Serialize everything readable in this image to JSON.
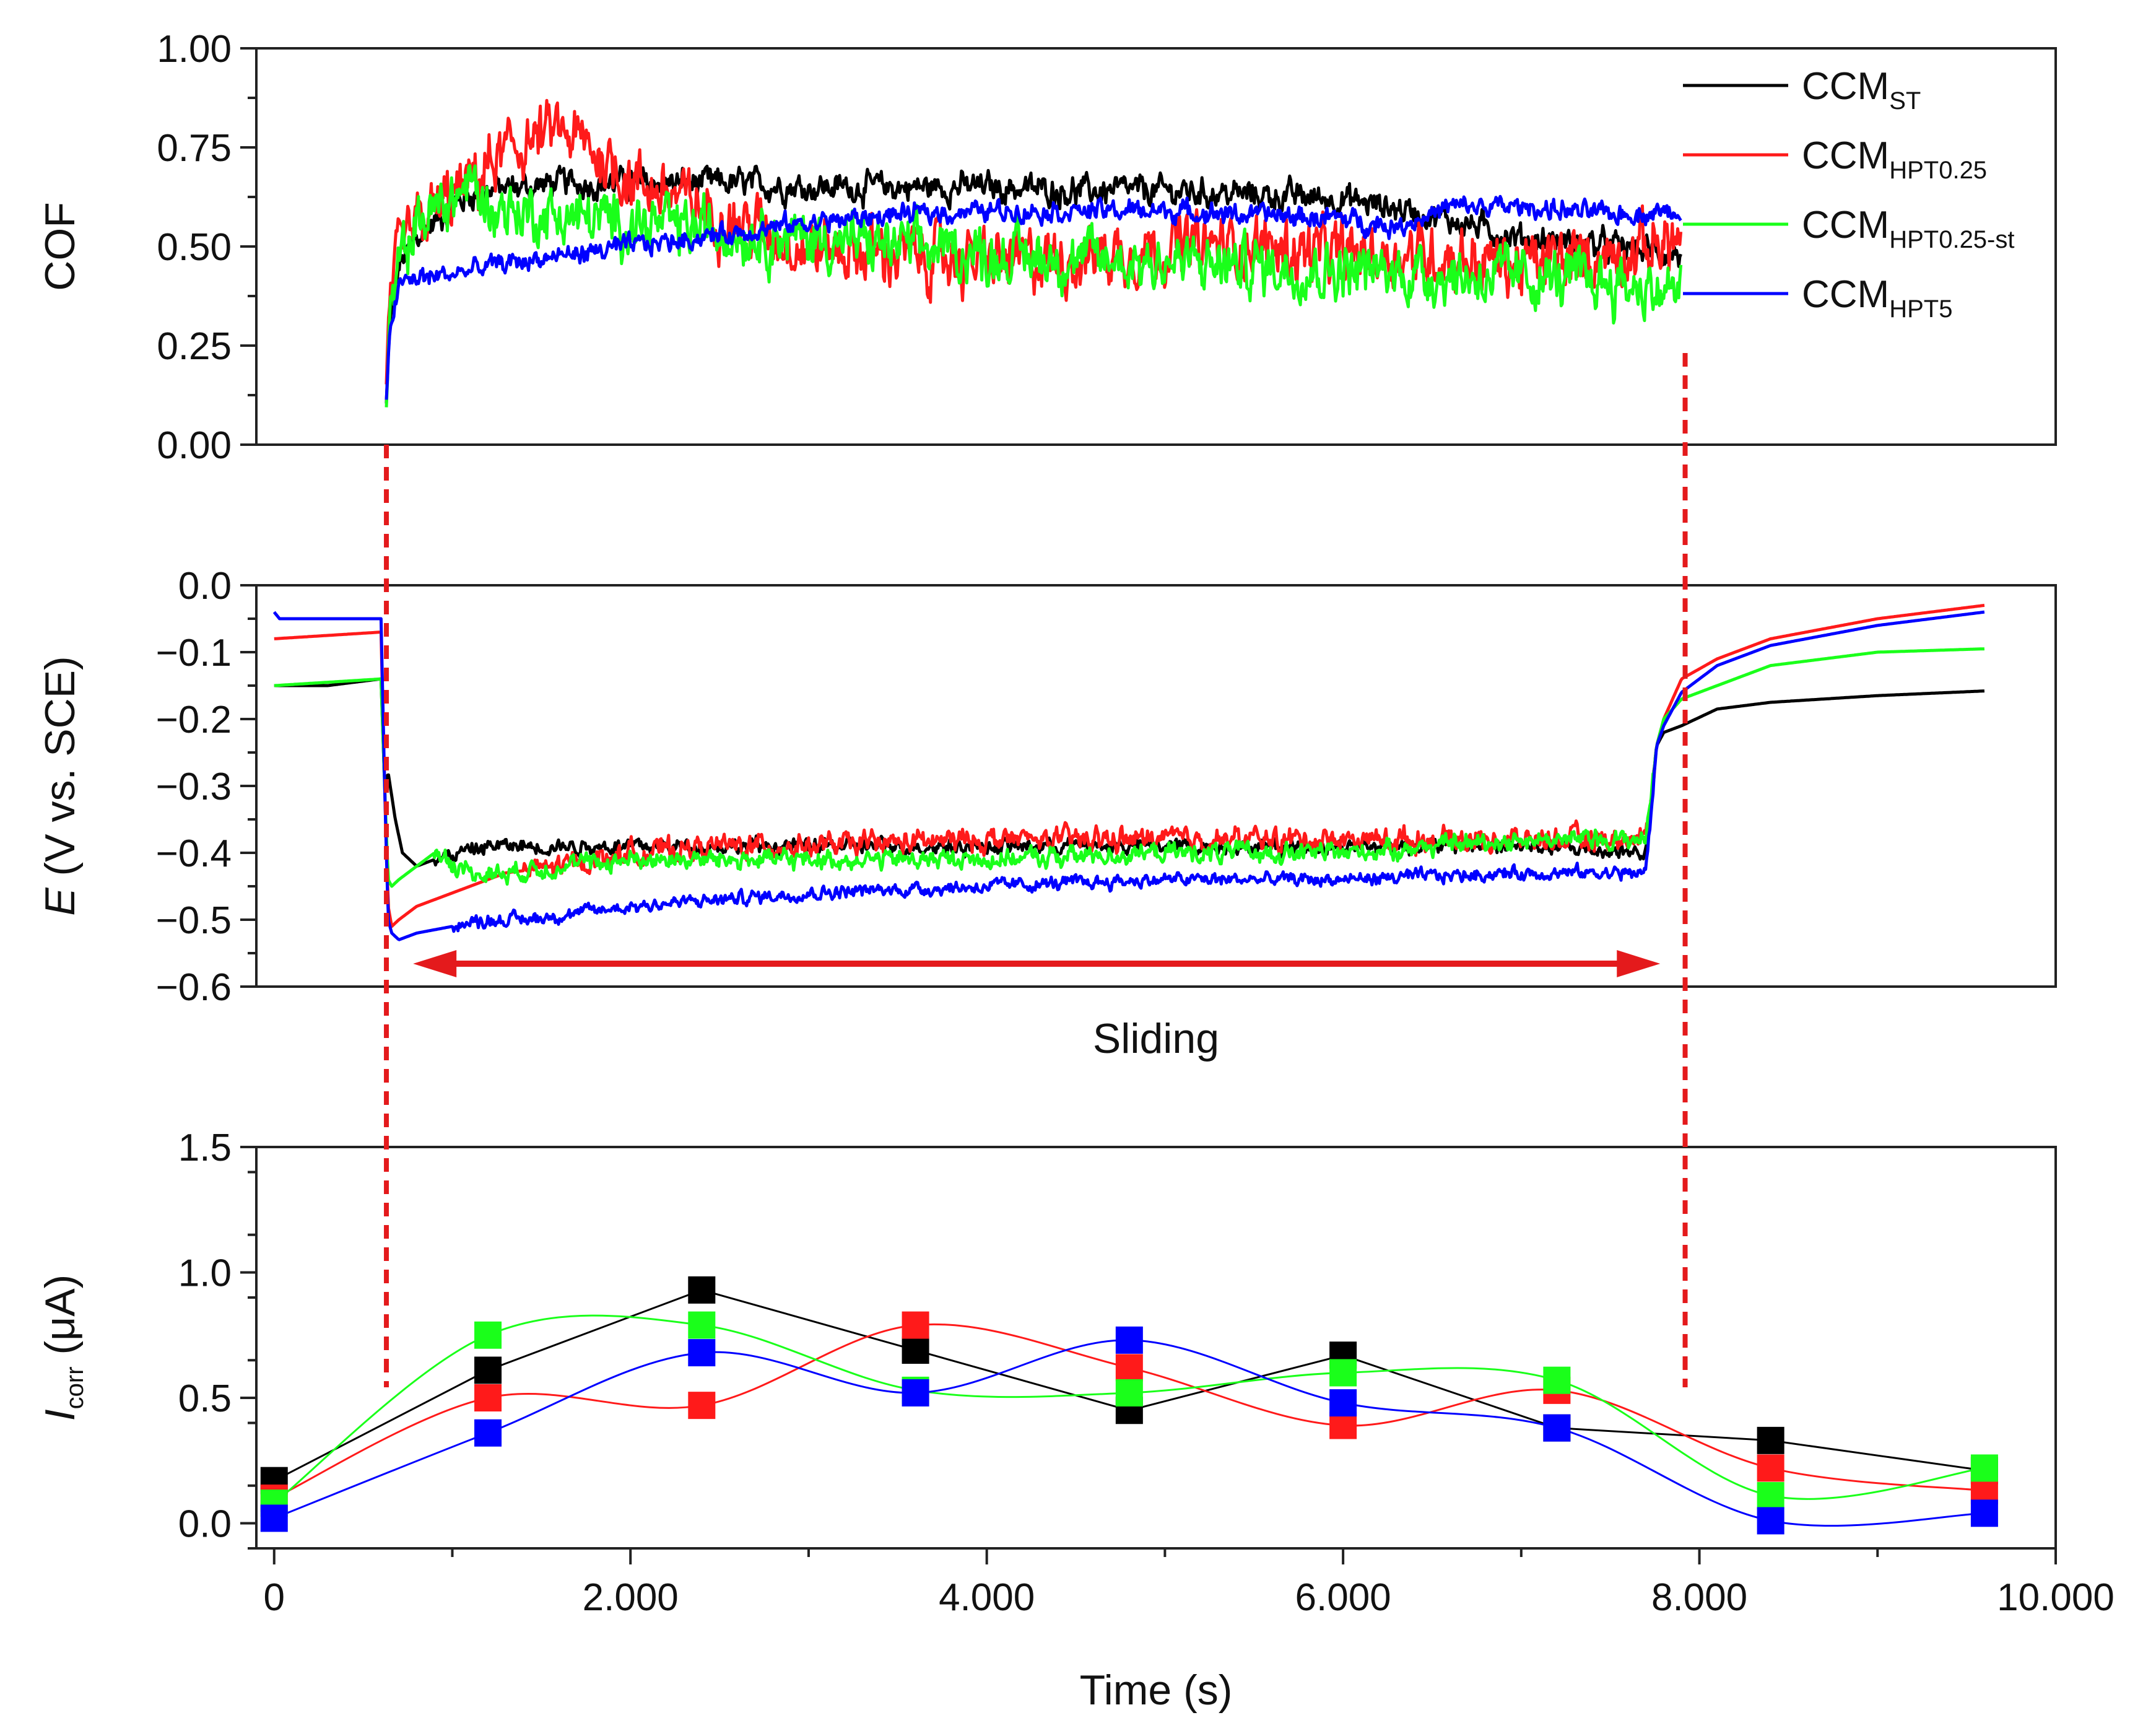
{
  "colors": {
    "CCM_ST": "#000000",
    "CCM_HPT0.25": "#ff1a1a",
    "CCM_HPT0.25-st": "#1aff1a",
    "CCM_HPT5": "#0000ff",
    "marker_dashed": "#e41a1c"
  },
  "chart_data": [
    {
      "type": "line",
      "panel": "top",
      "ylabel": "COF",
      "ylim": [
        0,
        1
      ],
      "xlim": [
        -100,
        10000
      ],
      "y_ticks": [
        "0.00",
        "0.25",
        "0.50",
        "0.75",
        "1.00"
      ],
      "legend": {
        "placement": "top-right",
        "entries": [
          {
            "key": "CCM_ST",
            "base": "CCM",
            "sub": "ST"
          },
          {
            "key": "CCM_HPT0.25",
            "base": "CCM",
            "sub": "HPT0.25"
          },
          {
            "key": "CCM_HPT0.25-st",
            "base": "CCM",
            "sub": "HPT0.25-st"
          },
          {
            "key": "CCM_HPT5",
            "base": "CCM",
            "sub": "HPT5"
          }
        ]
      },
      "series": [
        {
          "name": "CCM_ST",
          "x": [
            630,
            650,
            700,
            800,
            900,
            1000,
            1100,
            1200,
            1400,
            1600,
            2000,
            2500,
            3000,
            3500,
            4000,
            4500,
            5000,
            5500,
            6000,
            6500,
            7000,
            7500,
            7900
          ],
          "y": [
            0.1,
            0.3,
            0.45,
            0.52,
            0.56,
            0.6,
            0.63,
            0.64,
            0.65,
            0.66,
            0.66,
            0.66,
            0.65,
            0.65,
            0.65,
            0.64,
            0.64,
            0.63,
            0.62,
            0.58,
            0.52,
            0.5,
            0.48
          ],
          "noise": 0.025
        },
        {
          "name": "CCM_HPT0.25",
          "x": [
            630,
            650,
            700,
            800,
            1000,
            1200,
            1400,
            1600,
            1800,
            2000,
            2500,
            3000,
            3500,
            4000,
            4500,
            5000,
            5500,
            6000,
            6500,
            7000,
            7500,
            7900
          ],
          "y": [
            0.1,
            0.32,
            0.48,
            0.55,
            0.62,
            0.7,
            0.76,
            0.79,
            0.74,
            0.67,
            0.58,
            0.5,
            0.48,
            0.46,
            0.47,
            0.5,
            0.5,
            0.48,
            0.48,
            0.45,
            0.48,
            0.52
          ],
          "noise": 0.055
        },
        {
          "name": "CCM_HPT0.25-st",
          "x": [
            630,
            650,
            700,
            800,
            1000,
            1100,
            1200,
            1500,
            2000,
            2500,
            3000,
            3500,
            4000,
            4500,
            5000,
            5500,
            6000,
            6500,
            7000,
            7500,
            7900
          ],
          "y": [
            0.09,
            0.3,
            0.45,
            0.56,
            0.62,
            0.66,
            0.6,
            0.58,
            0.56,
            0.54,
            0.52,
            0.5,
            0.48,
            0.47,
            0.46,
            0.45,
            0.44,
            0.43,
            0.42,
            0.41,
            0.38
          ],
          "noise": 0.05
        },
        {
          "name": "CCM_HPT5",
          "x": [
            630,
            650,
            700,
            800,
            1000,
            1200,
            1500,
            2000,
            2500,
            3000,
            3500,
            4000,
            4500,
            5000,
            5500,
            6000,
            6300,
            6600,
            7000,
            7500,
            7900
          ],
          "y": [
            0.1,
            0.3,
            0.4,
            0.42,
            0.43,
            0.45,
            0.47,
            0.5,
            0.53,
            0.56,
            0.58,
            0.59,
            0.59,
            0.59,
            0.58,
            0.57,
            0.55,
            0.6,
            0.6,
            0.58,
            0.59
          ],
          "noise": 0.018
        }
      ]
    },
    {
      "type": "line",
      "panel": "middle",
      "ylabel": "E (V vs. SCE)",
      "ylabel_italic": "E",
      "ylabel_rest": " (V vs. SCE)",
      "ylim": [
        -0.6,
        0.0
      ],
      "xlim": [
        -100,
        10000
      ],
      "y_ticks": [
        "-0.6",
        "-0.5",
        "-0.4",
        "-0.3",
        "-0.2",
        "-0.1",
        "0.0"
      ],
      "annotation": "Sliding",
      "sliding_range": [
        780,
        7780
      ],
      "series": [
        {
          "name": "CCM_ST",
          "x": [
            0,
            300,
            600,
            620,
            640,
            680,
            720,
            800,
            900,
            1200,
            1500,
            2000,
            3000,
            4000,
            5000,
            6000,
            7000,
            7700,
            7760,
            7800,
            7900,
            8100,
            8400,
            9000,
            9600
          ],
          "y": [
            -0.15,
            -0.15,
            -0.14,
            -0.3,
            -0.28,
            -0.35,
            -0.4,
            -0.42,
            -0.41,
            -0.39,
            -0.39,
            -0.39,
            -0.39,
            -0.39,
            -0.39,
            -0.39,
            -0.39,
            -0.4,
            -0.24,
            -0.22,
            -0.21,
            -0.185,
            -0.175,
            -0.165,
            -0.158
          ],
          "noise": 0.008,
          "noise_range": [
            900,
            7750
          ]
        },
        {
          "name": "CCM_HPT0.25",
          "x": [
            0,
            300,
            600,
            620,
            640,
            660,
            700,
            800,
            1000,
            1300,
            1600,
            2000,
            2500,
            3000,
            4000,
            5000,
            6000,
            7000,
            7700,
            7760,
            7800,
            7900,
            8100,
            8400,
            9000,
            9600
          ],
          "y": [
            -0.08,
            -0.075,
            -0.07,
            -0.3,
            -0.48,
            -0.51,
            -0.5,
            -0.48,
            -0.46,
            -0.43,
            -0.42,
            -0.4,
            -0.39,
            -0.39,
            -0.38,
            -0.38,
            -0.38,
            -0.38,
            -0.38,
            -0.24,
            -0.2,
            -0.14,
            -0.11,
            -0.08,
            -0.05,
            -0.03
          ],
          "noise": 0.012,
          "noise_range": [
            1400,
            7750
          ]
        },
        {
          "name": "CCM_HPT0.25-st",
          "x": [
            0,
            300,
            600,
            620,
            640,
            660,
            700,
            800,
            900,
            1100,
            1300,
            1600,
            2000,
            3000,
            4000,
            5000,
            6000,
            7000,
            7700,
            7760,
            7800,
            7900,
            8100,
            8400,
            9000,
            9600
          ],
          "y": [
            -0.15,
            -0.145,
            -0.14,
            -0.3,
            -0.44,
            -0.45,
            -0.44,
            -0.42,
            -0.4,
            -0.43,
            -0.43,
            -0.42,
            -0.41,
            -0.41,
            -0.41,
            -0.4,
            -0.4,
            -0.38,
            -0.38,
            -0.24,
            -0.2,
            -0.17,
            -0.15,
            -0.12,
            -0.1,
            -0.095
          ],
          "noise": 0.01,
          "noise_range": [
            900,
            7750
          ]
        },
        {
          "name": "CCM_HPT5",
          "x": [
            0,
            30,
            300,
            600,
            620,
            640,
            660,
            700,
            800,
            1000,
            1200,
            1400,
            2000,
            3000,
            4000,
            5000,
            6000,
            7000,
            7700,
            7760,
            7800,
            7900,
            8100,
            8400,
            9000,
            9600
          ],
          "y": [
            -0.04,
            -0.05,
            -0.05,
            -0.05,
            -0.3,
            -0.5,
            -0.52,
            -0.53,
            -0.52,
            -0.51,
            -0.5,
            -0.5,
            -0.48,
            -0.46,
            -0.45,
            -0.44,
            -0.44,
            -0.43,
            -0.43,
            -0.24,
            -0.21,
            -0.16,
            -0.12,
            -0.09,
            -0.06,
            -0.04
          ],
          "noise": 0.007,
          "noise_range": [
            1000,
            7750
          ]
        }
      ]
    },
    {
      "type": "line",
      "panel": "bottom",
      "ylabel": "Icorr (μA)",
      "ylabel_main": "I",
      "ylabel_sub": "corr",
      "ylabel_rest": " (μA)",
      "xlabel": "Time (s)",
      "ylim": [
        -0.1,
        1.5
      ],
      "xlim": [
        -100,
        10000
      ],
      "y_ticks": [
        "0.0",
        "0.5",
        "1.0",
        "1.5"
      ],
      "x_ticks": [
        "0",
        "2.000",
        "4.000",
        "6.000",
        "8.000",
        "10.000"
      ],
      "x_tick_values": [
        0,
        2000,
        4000,
        6000,
        8000,
        10000
      ],
      "x": [
        0,
        1200,
        2400,
        3600,
        4800,
        6000,
        7200,
        8400,
        9600
      ],
      "series": [
        {
          "name": "CCM_ST",
          "line": "straight",
          "values": [
            0.17,
            0.61,
            0.93,
            0.69,
            0.45,
            0.67,
            0.38,
            0.33,
            0.21
          ]
        },
        {
          "name": "CCM_HPT0.25",
          "line": "smooth",
          "values": [
            0.1,
            0.5,
            0.47,
            0.79,
            0.62,
            0.39,
            0.53,
            0.22,
            0.13
          ]
        },
        {
          "name": "CCM_HPT0.25-st",
          "line": "smooth",
          "values": [
            0.08,
            0.75,
            0.79,
            0.53,
            0.52,
            0.6,
            0.57,
            0.11,
            0.22
          ]
        },
        {
          "name": "CCM_HPT5",
          "line": "smooth",
          "values": [
            0.02,
            0.36,
            0.68,
            0.52,
            0.73,
            0.48,
            0.38,
            0.01,
            0.04
          ]
        }
      ]
    }
  ],
  "guides": {
    "dashed_times": [
      630,
      7920
    ]
  }
}
